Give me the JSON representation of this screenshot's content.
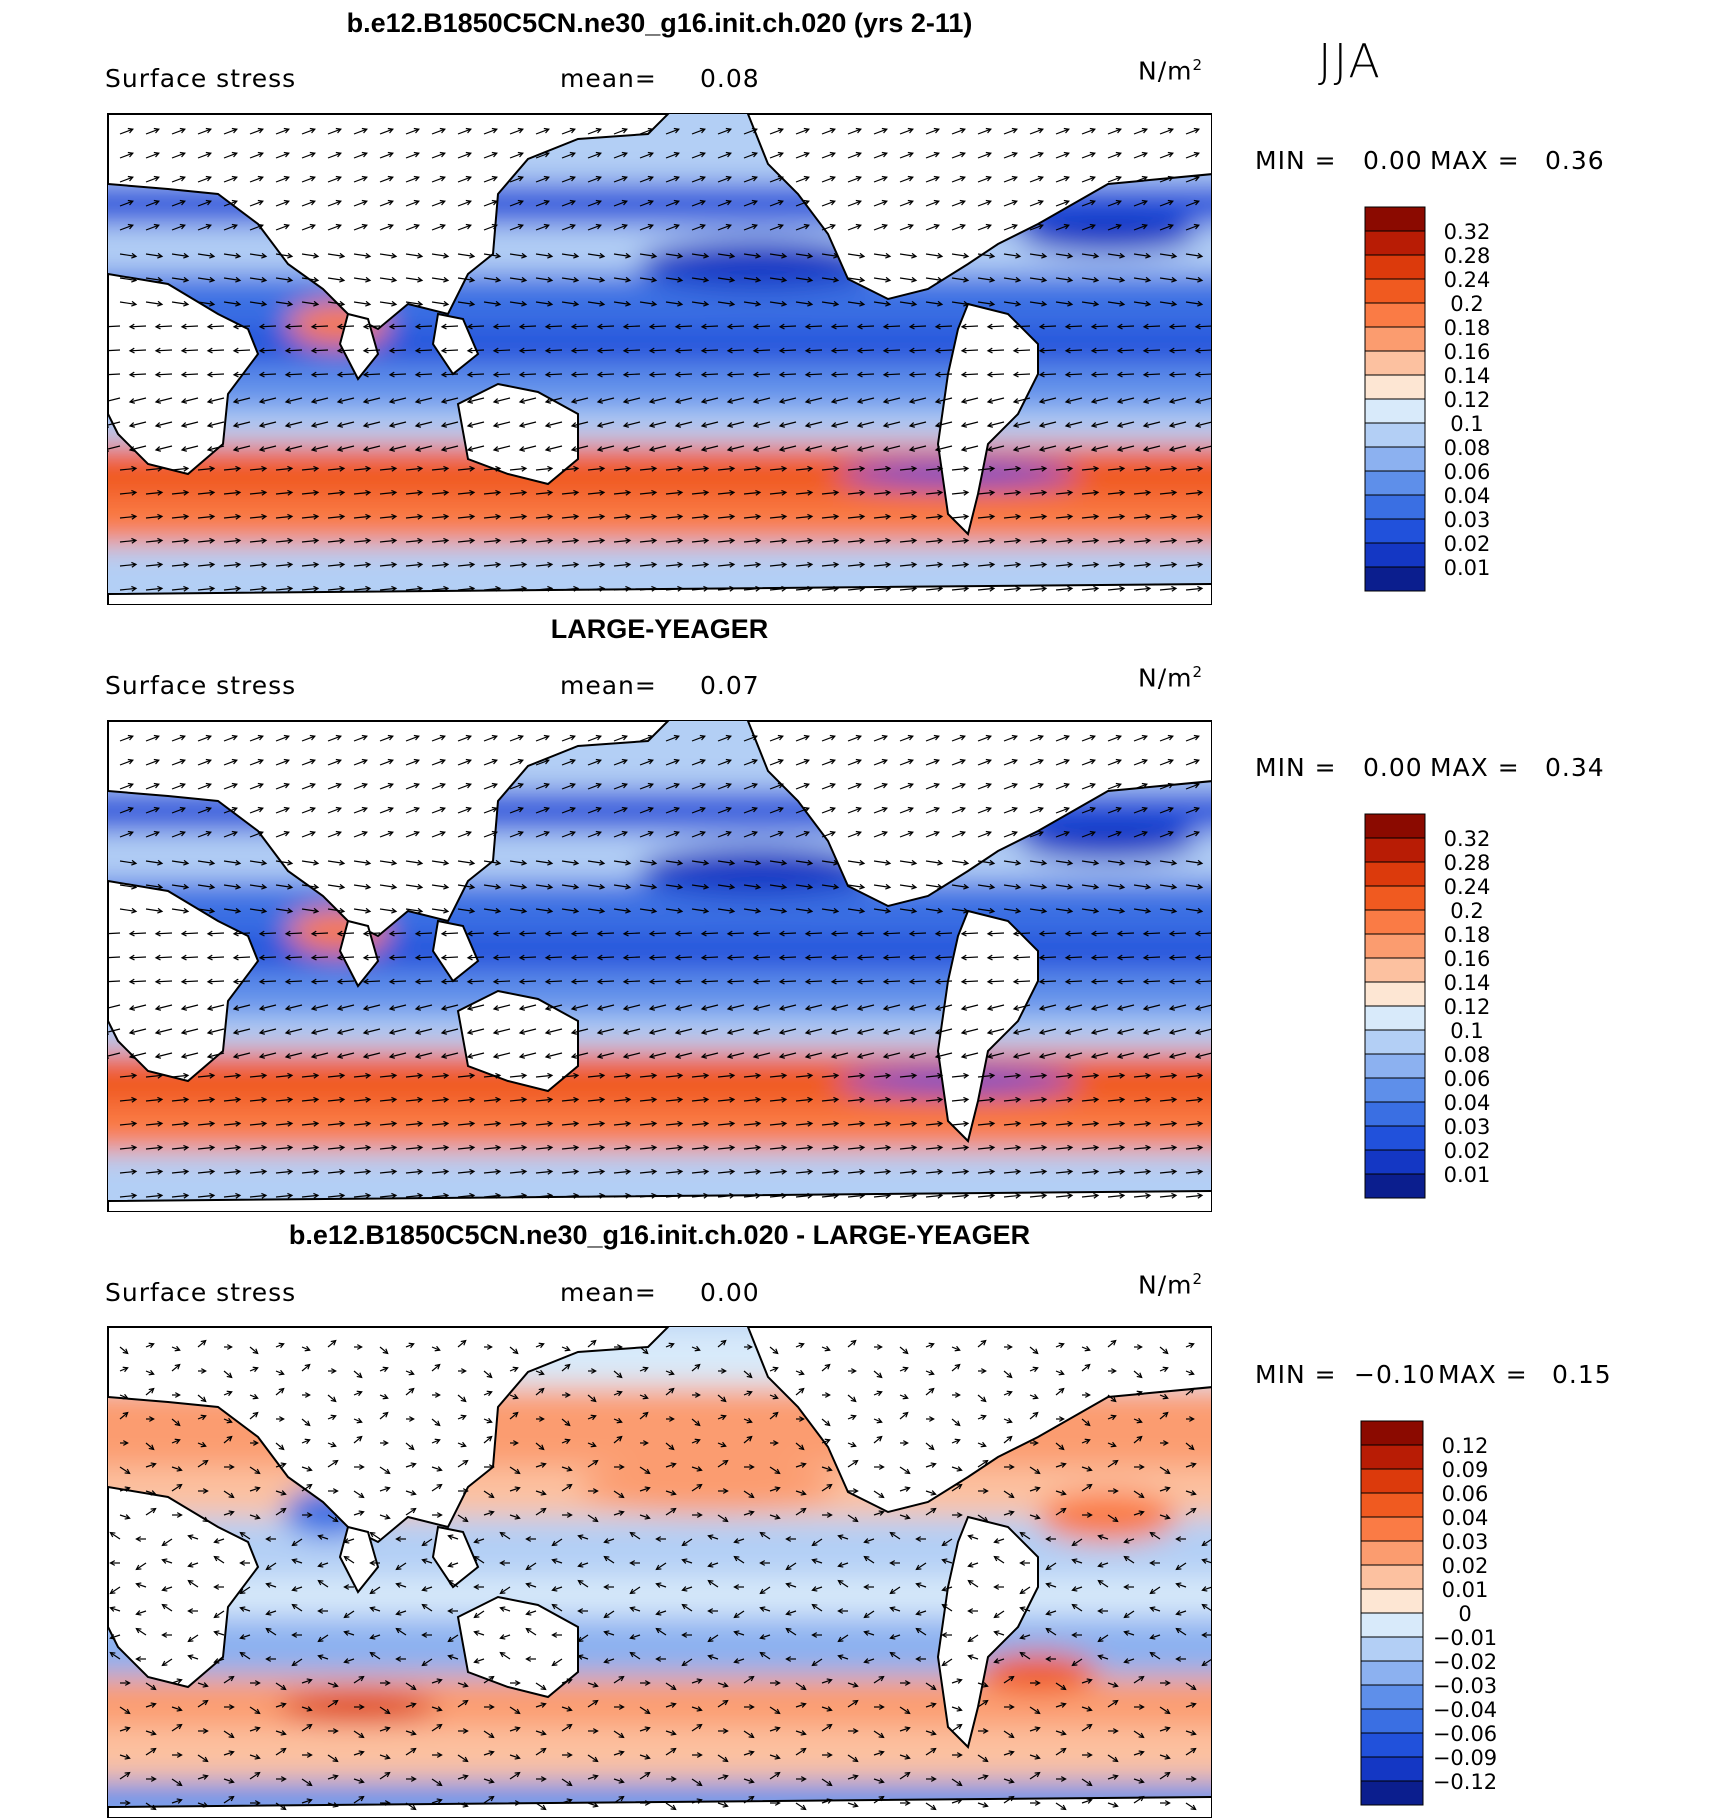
{
  "season": "JJA",
  "chart_data": [
    {
      "type": "heatmap",
      "title": "b.e12.B1850C5CN.ne30_g16.init.ch.020 (yrs 2-11)",
      "variable": "Surface stress",
      "mean_label": "mean=",
      "mean": "0.08",
      "units": "N/m",
      "units_exp": "2",
      "min_label": "MIN =",
      "min": "0.00",
      "max_label": "MAX =",
      "max": "0.36",
      "colorbar_levels": [
        "0.32",
        "0.28",
        "0.24",
        "0.2",
        "0.18",
        "0.16",
        "0.14",
        "0.12",
        "0.1",
        "0.08",
        "0.06",
        "0.04",
        "0.03",
        "0.02",
        "0.01"
      ],
      "colorbar_colors": [
        "#8b0a00",
        "#b81c05",
        "#dc3a0c",
        "#f05a20",
        "#fa7b45",
        "#fb9c6f",
        "#fcc1a0",
        "#fde6d3",
        "#d8eafa",
        "#b3cff5",
        "#8cb1f0",
        "#5e8fea",
        "#3a6fe3",
        "#2151db",
        "#1437c4",
        "#0b1e8e"
      ]
    },
    {
      "type": "heatmap",
      "title": "LARGE-YEAGER",
      "variable": "Surface stress",
      "mean_label": "mean=",
      "mean": "0.07",
      "units": "N/m",
      "units_exp": "2",
      "min_label": "MIN =",
      "min": "0.00",
      "max_label": "MAX =",
      "max": "0.34",
      "colorbar_levels": [
        "0.32",
        "0.28",
        "0.24",
        "0.2",
        "0.18",
        "0.16",
        "0.14",
        "0.12",
        "0.1",
        "0.08",
        "0.06",
        "0.04",
        "0.03",
        "0.02",
        "0.01"
      ],
      "colorbar_colors": [
        "#8b0a00",
        "#b81c05",
        "#dc3a0c",
        "#f05a20",
        "#fa7b45",
        "#fb9c6f",
        "#fcc1a0",
        "#fde6d3",
        "#d8eafa",
        "#b3cff5",
        "#8cb1f0",
        "#5e8fea",
        "#3a6fe3",
        "#2151db",
        "#1437c4",
        "#0b1e8e"
      ]
    },
    {
      "type": "heatmap",
      "title": "b.e12.B1850C5CN.ne30_g16.init.ch.020 - LARGE-YEAGER",
      "variable": "Surface stress",
      "mean_label": "mean=",
      "mean": "0.00",
      "units": "N/m",
      "units_exp": "2",
      "min_label": "MIN =",
      "min": "−0.10",
      "max_label": "MAX =",
      "max": "0.15",
      "colorbar_levels": [
        "0.12",
        "0.09",
        "0.06",
        "0.04",
        "0.03",
        "0.02",
        "0.01",
        "0",
        "−0.01",
        "−0.02",
        "−0.03",
        "−0.04",
        "−0.06",
        "−0.09",
        "−0.12"
      ],
      "colorbar_colors": [
        "#8b0a00",
        "#b81c05",
        "#dc3a0c",
        "#f05a20",
        "#fa7b45",
        "#fb9c6f",
        "#fcc1a0",
        "#fde6d3",
        "#d8eafa",
        "#b3cff5",
        "#8cb1f0",
        "#5e8fea",
        "#3a6fe3",
        "#2151db",
        "#1437c4",
        "#0b1e8e"
      ]
    }
  ]
}
